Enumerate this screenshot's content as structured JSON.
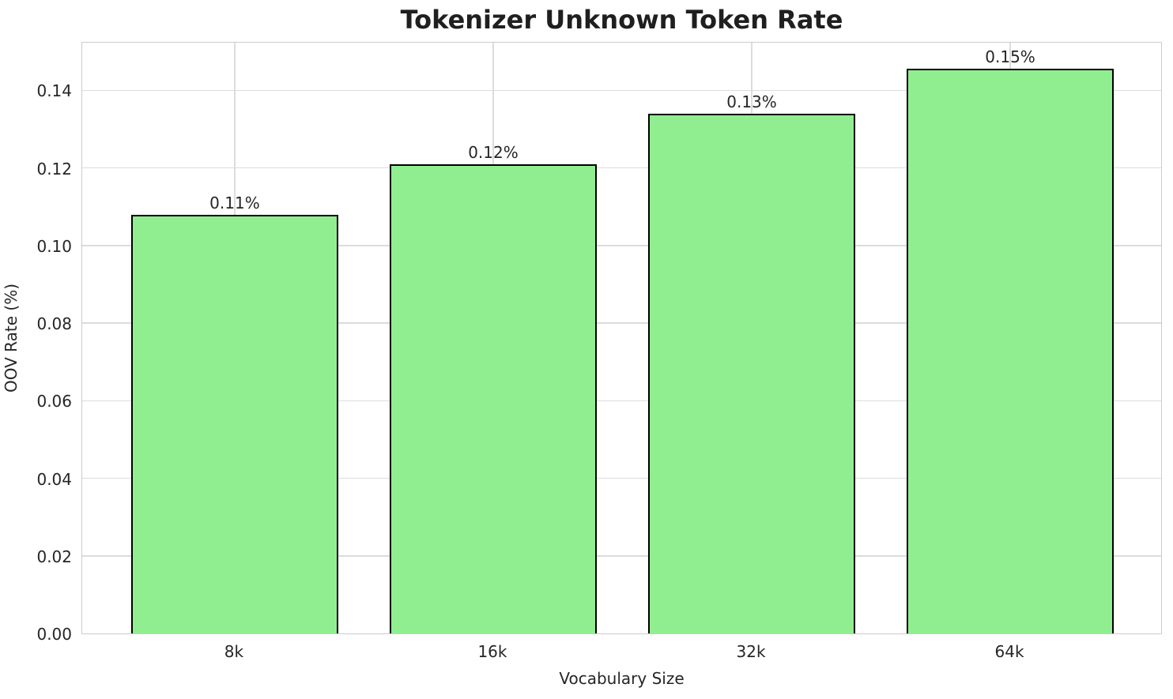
{
  "title": "Tokenizer Unknown Token Rate",
  "chart_data": {
    "type": "bar",
    "title": "Tokenizer Unknown Token Rate",
    "xlabel": "Vocabulary Size",
    "ylabel": "OOV Rate (%)",
    "categories": [
      "8k",
      "16k",
      "32k",
      "64k"
    ],
    "values": [
      0.108,
      0.121,
      0.134,
      0.1455
    ],
    "bar_labels": [
      "0.11%",
      "0.12%",
      "0.13%",
      "0.15%"
    ],
    "ytick_labels": [
      "0.00",
      "0.02",
      "0.04",
      "0.06",
      "0.08",
      "0.10",
      "0.12",
      "0.14"
    ],
    "ytick_values": [
      0,
      0.02,
      0.04,
      0.06,
      0.08,
      0.1,
      0.12,
      0.14
    ],
    "ylim": [
      0,
      0.1527
    ],
    "xlim": [
      -0.59,
      3.59
    ],
    "bar_width": 0.8,
    "grid": true,
    "legend": "none",
    "colors": {
      "bar_fill": "#90EE90",
      "bar_edge": "#000000",
      "grid_line": "#dcdcdc",
      "spine": "#cccccc",
      "text": "#262626",
      "background": "#ffffff"
    }
  }
}
